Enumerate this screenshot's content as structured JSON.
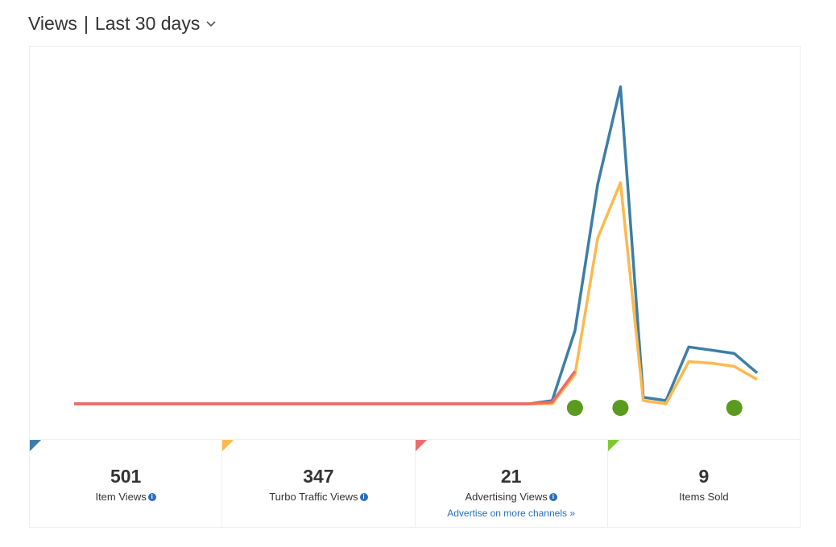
{
  "header": {
    "title": "Views",
    "period": "Last 30 days"
  },
  "chart_data": {
    "type": "line",
    "series": [
      {
        "name": "Item Views",
        "color": "#3d7ea6",
        "values": [
          0,
          0,
          0,
          0,
          0,
          0,
          0,
          0,
          0,
          0,
          0,
          0,
          0,
          0,
          0,
          0,
          0,
          0,
          0,
          0,
          0,
          2,
          45,
          135,
          195,
          4,
          2,
          35,
          33,
          31,
          19
        ]
      },
      {
        "name": "Turbo Traffic Views",
        "color": "#fdb94e",
        "values": [
          0,
          0,
          0,
          0,
          0,
          0,
          0,
          0,
          0,
          0,
          0,
          0,
          0,
          0,
          0,
          0,
          0,
          0,
          0,
          0,
          0,
          0,
          18,
          102,
          136,
          2,
          0,
          26,
          25,
          23,
          15
        ]
      },
      {
        "name": "Advertising Views",
        "color": "#ef6a6a",
        "values": [
          0,
          0,
          0,
          0,
          0,
          0,
          0,
          0,
          0,
          0,
          0,
          0,
          0,
          0,
          0,
          0,
          0,
          0,
          0,
          0,
          0,
          1,
          20,
          null,
          null,
          null,
          null,
          null,
          null,
          null,
          null
        ]
      }
    ],
    "sold": {
      "color": "#5a9a1f",
      "values": [
        0,
        0,
        0,
        0,
        0,
        0,
        0,
        0,
        0,
        0,
        0,
        0,
        0,
        0,
        0,
        0,
        0,
        0,
        0,
        0,
        0,
        0,
        3,
        0,
        3,
        0,
        0,
        0,
        0,
        3,
        0
      ]
    }
  },
  "summary": [
    {
      "value": 501,
      "label": "Item Views",
      "color": "#3d7ea6",
      "info": true
    },
    {
      "value": 347,
      "label": "Turbo Traffic Views",
      "color": "#fdb94e",
      "info": true
    },
    {
      "value": 21,
      "label": "Advertising Views",
      "color": "#ef6a6a",
      "info": true,
      "link": "Advertise on more channels »"
    },
    {
      "value": 9,
      "label": "Items Sold",
      "color": "#7ccb2e",
      "info": false
    }
  ]
}
